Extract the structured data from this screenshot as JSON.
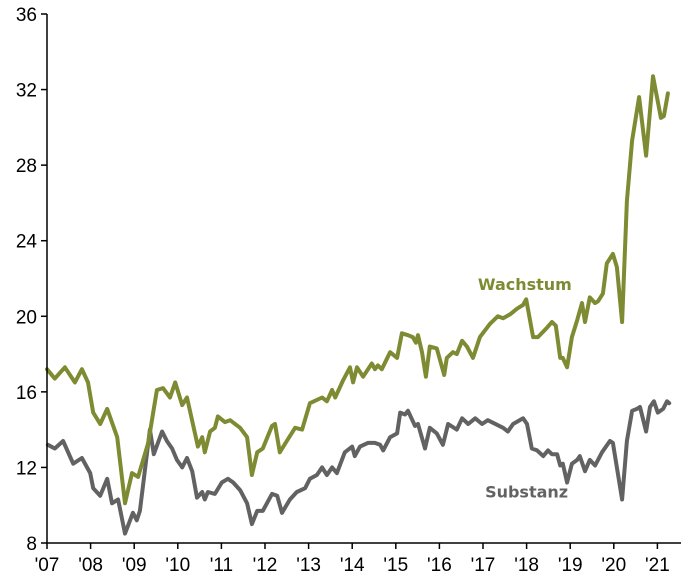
{
  "chart_data": {
    "type": "line",
    "title": "",
    "xlabel": "",
    "ylabel": "",
    "ylim": [
      8,
      36
    ],
    "xlim": [
      2007,
      2021.3
    ],
    "yticks": [
      8,
      12,
      16,
      20,
      24,
      28,
      32,
      36
    ],
    "xticks": [
      2007,
      2008,
      2009,
      2010,
      2011,
      2012,
      2013,
      2014,
      2015,
      2016,
      2017,
      2018,
      2019,
      2020,
      2021
    ],
    "xtick_labels": [
      "'07",
      "'08",
      "'09",
      "'10",
      "'11",
      "'12",
      "'13",
      "'14",
      "'15",
      "'16",
      "'17",
      "'18",
      "'19",
      "'20",
      "'21"
    ],
    "ytick_labels": [
      "8",
      "12",
      "16",
      "20",
      "24",
      "28",
      "32",
      "36"
    ],
    "grid": false,
    "series": [
      {
        "name": "Wachstum",
        "color": "#7E8B32",
        "label_pos": {
          "x": 2017.96,
          "y": 21.4
        },
        "x": [
          2007.0,
          2007.18,
          2007.41,
          2007.64,
          2007.8,
          2007.94,
          2008.06,
          2008.22,
          2008.38,
          2008.61,
          2008.79,
          2008.95,
          2009.09,
          2009.32,
          2009.52,
          2009.66,
          2009.82,
          2009.94,
          2010.1,
          2010.21,
          2010.46,
          2010.56,
          2010.62,
          2010.74,
          2010.85,
          2010.92,
          2011.08,
          2011.2,
          2011.43,
          2011.59,
          2011.7,
          2011.82,
          2011.95,
          2012.16,
          2012.23,
          2012.34,
          2012.5,
          2012.69,
          2012.85,
          2013.03,
          2013.31,
          2013.42,
          2013.54,
          2013.61,
          2013.79,
          2013.95,
          2014.02,
          2014.11,
          2014.25,
          2014.45,
          2014.52,
          2014.59,
          2014.68,
          2014.87,
          2015.03,
          2015.14,
          2015.28,
          2015.39,
          2015.46,
          2015.51,
          2015.6,
          2015.69,
          2015.78,
          2015.94,
          2016.11,
          2016.17,
          2016.31,
          2016.4,
          2016.52,
          2016.63,
          2016.77,
          2016.93,
          2017.16,
          2017.34,
          2017.46,
          2017.62,
          2017.78,
          2017.92,
          2017.99,
          2018.15,
          2018.26,
          2018.47,
          2018.58,
          2018.67,
          2018.77,
          2018.83,
          2018.93,
          2019.04,
          2019.16,
          2019.27,
          2019.34,
          2019.45,
          2019.57,
          2019.64,
          2019.75,
          2019.84,
          2019.98,
          2020.07,
          2020.19,
          2020.3,
          2020.42,
          2020.58,
          2020.74,
          2020.9,
          2021.08,
          2021.15,
          2021.24
        ],
        "values": [
          17.2,
          16.7,
          17.3,
          16.5,
          17.2,
          16.5,
          14.9,
          14.3,
          15.1,
          13.6,
          10.1,
          11.7,
          11.5,
          13.3,
          16.1,
          16.2,
          15.7,
          16.5,
          15.3,
          15.7,
          13.1,
          13.6,
          12.8,
          13.9,
          14.1,
          14.7,
          14.4,
          14.5,
          14.1,
          13.6,
          11.6,
          12.8,
          13.0,
          14.2,
          14.3,
          12.8,
          13.4,
          14.1,
          14.0,
          15.4,
          15.7,
          15.5,
          16.1,
          15.7,
          16.6,
          17.3,
          16.5,
          17.3,
          16.8,
          17.5,
          17.2,
          17.4,
          17.2,
          18.1,
          17.8,
          19.1,
          19.0,
          18.9,
          18.6,
          19.0,
          18.1,
          16.8,
          18.4,
          18.3,
          16.9,
          17.8,
          18.1,
          18.0,
          18.7,
          18.4,
          17.8,
          18.9,
          19.6,
          20.0,
          19.9,
          20.1,
          20.4,
          20.6,
          20.9,
          18.9,
          18.9,
          19.4,
          19.7,
          19.5,
          17.8,
          17.8,
          17.3,
          18.9,
          19.8,
          20.7,
          19.7,
          21.0,
          20.7,
          20.8,
          21.2,
          22.8,
          23.3,
          22.6,
          19.7,
          26.1,
          29.3,
          31.6,
          28.5,
          32.7,
          30.5,
          30.6,
          31.8
        ]
      },
      {
        "name": "Substanz",
        "color": "#626262",
        "label_pos": {
          "x": 2018.0,
          "y": 10.4
        },
        "x": [
          2007.02,
          2007.18,
          2007.37,
          2007.6,
          2007.8,
          2007.99,
          2008.06,
          2008.22,
          2008.38,
          2008.49,
          2008.63,
          2008.79,
          2008.97,
          2009.06,
          2009.13,
          2009.36,
          2009.45,
          2009.64,
          2009.75,
          2009.87,
          2009.98,
          2010.1,
          2010.21,
          2010.33,
          2010.44,
          2010.56,
          2010.62,
          2010.69,
          2010.85,
          2011.01,
          2011.15,
          2011.27,
          2011.43,
          2011.59,
          2011.7,
          2011.82,
          2011.95,
          2012.16,
          2012.28,
          2012.39,
          2012.57,
          2012.73,
          2012.92,
          2013.03,
          2013.19,
          2013.31,
          2013.42,
          2013.54,
          2013.65,
          2013.83,
          2014.0,
          2014.06,
          2014.18,
          2014.36,
          2014.52,
          2014.64,
          2014.71,
          2014.87,
          2015.03,
          2015.1,
          2015.21,
          2015.28,
          2015.44,
          2015.51,
          2015.67,
          2015.78,
          2015.94,
          2016.08,
          2016.2,
          2016.4,
          2016.52,
          2016.66,
          2016.82,
          2016.98,
          2017.11,
          2017.46,
          2017.57,
          2017.69,
          2017.92,
          2018.01,
          2018.12,
          2018.24,
          2018.38,
          2018.49,
          2018.58,
          2018.7,
          2018.77,
          2018.83,
          2018.93,
          2019.04,
          2019.16,
          2019.22,
          2019.34,
          2019.45,
          2019.57,
          2019.73,
          2019.91,
          2019.98,
          2020.19,
          2020.3,
          2020.42,
          2020.53,
          2020.6,
          2020.74,
          2020.83,
          2020.92,
          2021.01,
          2021.13,
          2021.22,
          2021.27
        ],
        "values": [
          13.2,
          13.0,
          13.4,
          12.2,
          12.5,
          11.7,
          10.9,
          10.5,
          11.4,
          10.1,
          10.3,
          8.5,
          9.6,
          9.2,
          9.7,
          14.0,
          12.7,
          13.9,
          13.4,
          13.0,
          12.4,
          12.0,
          12.5,
          11.8,
          10.4,
          10.7,
          10.3,
          10.7,
          10.6,
          11.2,
          11.4,
          11.2,
          10.8,
          10.1,
          9.0,
          9.7,
          9.7,
          10.6,
          10.5,
          9.6,
          10.3,
          10.7,
          10.9,
          11.4,
          11.6,
          12.0,
          11.6,
          12.0,
          11.7,
          12.8,
          13.1,
          12.6,
          13.1,
          13.3,
          13.3,
          13.2,
          12.9,
          13.6,
          13.8,
          14.9,
          14.8,
          15.0,
          14.2,
          14.3,
          13.0,
          14.1,
          13.8,
          13.2,
          14.3,
          14.0,
          14.6,
          14.3,
          14.6,
          14.3,
          14.5,
          14.1,
          13.9,
          14.3,
          14.6,
          14.3,
          13.0,
          12.9,
          12.6,
          12.9,
          12.7,
          12.7,
          12.1,
          12.2,
          11.2,
          12.2,
          12.4,
          12.6,
          11.8,
          12.4,
          12.1,
          12.8,
          13.4,
          13.3,
          10.3,
          13.4,
          15.0,
          15.1,
          15.2,
          13.9,
          15.2,
          15.5,
          14.9,
          15.1,
          15.5,
          15.4
        ]
      }
    ]
  }
}
